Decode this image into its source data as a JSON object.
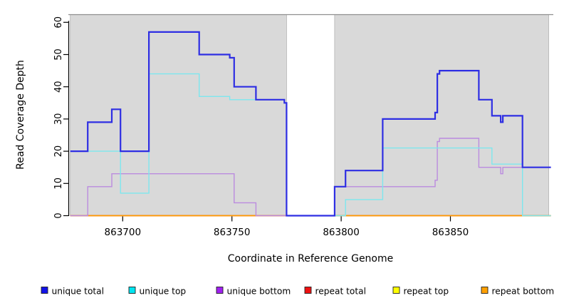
{
  "chart_data": {
    "type": "line",
    "step": true,
    "title": "",
    "xlabel": "Coordinate in Reference Genome",
    "ylabel": "Read Coverage Depth",
    "xlim": [
      863675,
      863896
    ],
    "ylim": [
      0,
      62.4
    ],
    "x_ticks": [
      863700,
      863750,
      863800,
      863850
    ],
    "y_ticks": [
      0,
      10,
      20,
      30,
      40,
      50,
      60
    ],
    "grid": false,
    "legend_position": "bottom",
    "plot_background": {
      "fill": "#d9d9d9",
      "border": "#b3b3b3",
      "top_line": "#8f8f8f",
      "regions": [
        [
          863676,
          863775
        ],
        [
          863797,
          863895
        ]
      ],
      "gap_region": [
        863775,
        863797
      ]
    },
    "series": [
      {
        "name": "unique total",
        "line_color": "#2e2ee3",
        "swatch_color": "#1212e8",
        "width": 2.2,
        "points": [
          [
            863676,
            20
          ],
          [
            863684,
            29
          ],
          [
            863695,
            33
          ],
          [
            863699,
            20
          ],
          [
            863712,
            57
          ],
          [
            863735,
            50
          ],
          [
            863749,
            49
          ],
          [
            863751,
            40
          ],
          [
            863761,
            36
          ],
          [
            863774,
            35
          ],
          [
            863775,
            0
          ],
          [
            863797,
            9
          ],
          [
            863802,
            14
          ],
          [
            863819,
            30
          ],
          [
            863843,
            32
          ],
          [
            863844,
            44
          ],
          [
            863845,
            45
          ],
          [
            863863,
            36
          ],
          [
            863869,
            31
          ],
          [
            863873,
            29
          ],
          [
            863874,
            31
          ],
          [
            863883,
            15
          ],
          [
            863896,
            15
          ]
        ]
      },
      {
        "name": "unique top",
        "line_color": "#7de7ee",
        "swatch_color": "#00e5f0",
        "width": 1.4,
        "points": [
          [
            863676,
            20
          ],
          [
            863699,
            7
          ],
          [
            863712,
            44
          ],
          [
            863735,
            37
          ],
          [
            863749,
            36
          ],
          [
            863774,
            35
          ],
          [
            863775,
            0
          ],
          [
            863802,
            5
          ],
          [
            863819,
            21
          ],
          [
            863869,
            16
          ],
          [
            863883,
            0
          ],
          [
            863896,
            0
          ]
        ]
      },
      {
        "name": "unique bottom",
        "line_color": "#bb8bdf",
        "swatch_color": "#a020f0",
        "width": 1.4,
        "points": [
          [
            863676,
            0
          ],
          [
            863684,
            9
          ],
          [
            863695,
            13
          ],
          [
            863751,
            4
          ],
          [
            863761,
            0
          ],
          [
            863797,
            9
          ],
          [
            863843,
            11
          ],
          [
            863844,
            23
          ],
          [
            863845,
            24
          ],
          [
            863863,
            15
          ],
          [
            863873,
            13
          ],
          [
            863874,
            15
          ],
          [
            863896,
            15
          ]
        ]
      },
      {
        "name": "repeat total",
        "line_color": "#e22222",
        "swatch_color": "#ee1111",
        "width": 1.5,
        "points": [
          [
            863676,
            0
          ],
          [
            863896,
            0
          ]
        ]
      },
      {
        "name": "repeat top",
        "line_color": "#ffe800",
        "swatch_color": "#ffff00",
        "width": 1.5,
        "points": [
          [
            863676,
            0
          ],
          [
            863896,
            0
          ]
        ]
      },
      {
        "name": "repeat bottom",
        "line_color": "#ff9d00",
        "swatch_color": "#ffa000",
        "width": 1.5,
        "points": [
          [
            863676,
            0
          ],
          [
            863896,
            0
          ]
        ]
      }
    ],
    "draw_order": [
      4,
      3,
      5,
      2,
      1,
      0
    ]
  }
}
